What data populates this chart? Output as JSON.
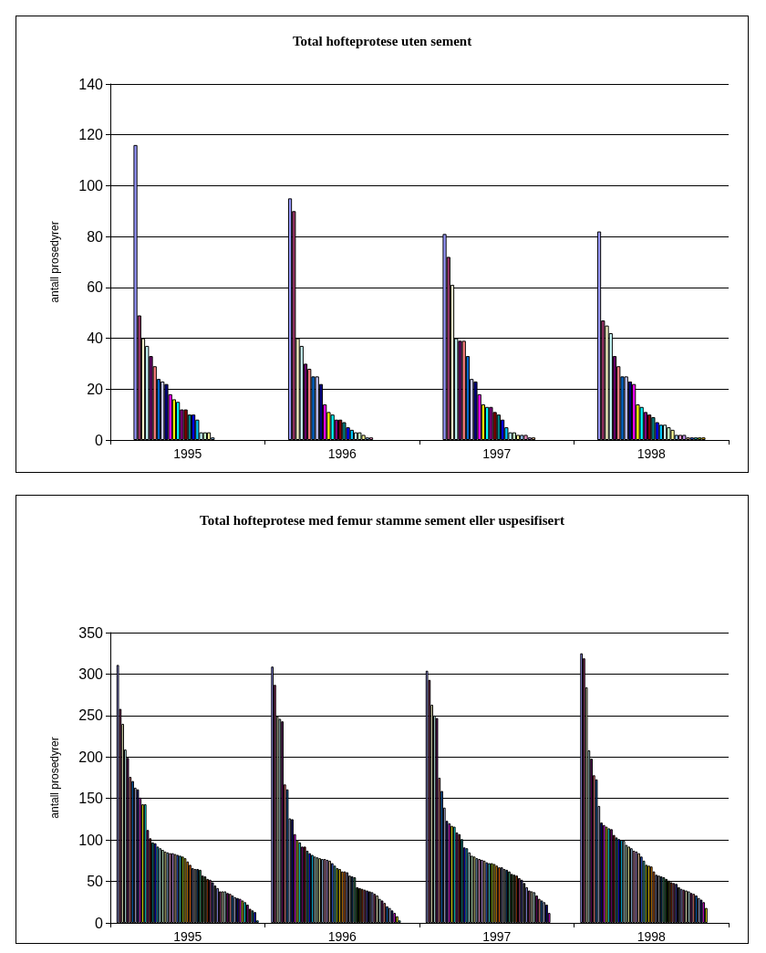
{
  "chart_data": [
    {
      "type": "bar",
      "title": "Total hofteprotese uten sement",
      "ylabel": "antall prosedyrer",
      "categories": [
        "1995",
        "1996",
        "1997",
        "1998"
      ],
      "ylim": [
        0,
        140
      ],
      "yticks": [
        0,
        20,
        40,
        60,
        80,
        100,
        120,
        140
      ],
      "grid": "y",
      "series": [
        {
          "color": "#9999ff",
          "values": [
            116,
            95,
            81,
            82
          ]
        },
        {
          "color": "#993366",
          "values": [
            49,
            90,
            72,
            47
          ]
        },
        {
          "color": "#ffffcc",
          "values": [
            40,
            40,
            61,
            45
          ]
        },
        {
          "color": "#ccffff",
          "values": [
            37,
            37,
            40,
            42
          ]
        },
        {
          "color": "#660066",
          "values": [
            33,
            30,
            39,
            33
          ]
        },
        {
          "color": "#ff8080",
          "values": [
            29,
            28,
            39,
            29
          ]
        },
        {
          "color": "#0066cc",
          "values": [
            24,
            25,
            33,
            25
          ]
        },
        {
          "color": "#ccccff",
          "values": [
            23,
            25,
            24,
            25
          ]
        },
        {
          "color": "#000080",
          "values": [
            22,
            22,
            23,
            23
          ]
        },
        {
          "color": "#ff00ff",
          "values": [
            18,
            14,
            18,
            22
          ]
        },
        {
          "color": "#ffff00",
          "values": [
            16,
            11,
            14,
            14
          ]
        },
        {
          "color": "#00ffff",
          "values": [
            15,
            10,
            13,
            13
          ]
        },
        {
          "color": "#800080",
          "values": [
            12,
            8,
            13,
            11
          ]
        },
        {
          "color": "#800000",
          "values": [
            12,
            8,
            11,
            10
          ]
        },
        {
          "color": "#008080",
          "values": [
            10,
            7,
            10,
            9
          ]
        },
        {
          "color": "#0000ff",
          "values": [
            10,
            5,
            8,
            7
          ]
        },
        {
          "color": "#00ccff",
          "values": [
            8,
            4,
            5,
            6
          ]
        },
        {
          "color": "#ccffff",
          "values": [
            3,
            3,
            3,
            6
          ]
        },
        {
          "color": "#ccffcc",
          "values": [
            3,
            3,
            3,
            5
          ]
        },
        {
          "color": "#ffff99",
          "values": [
            3,
            2,
            2,
            4
          ]
        },
        {
          "color": "#99ccff",
          "values": [
            1,
            1,
            2,
            2
          ]
        },
        {
          "color": "#ff99cc",
          "values": [
            null,
            1,
            2,
            2
          ]
        },
        {
          "color": "#cc99ff",
          "values": [
            null,
            null,
            1,
            2
          ]
        },
        {
          "color": "#ffcc99",
          "values": [
            null,
            null,
            1,
            1
          ]
        },
        {
          "color": "#3366ff",
          "values": [
            null,
            null,
            null,
            1
          ]
        },
        {
          "color": "#33cccc",
          "values": [
            null,
            null,
            null,
            1
          ]
        },
        {
          "color": "#99cc00",
          "values": [
            null,
            null,
            null,
            1
          ]
        },
        {
          "color": "#ffcc00",
          "values": [
            null,
            null,
            null,
            1
          ]
        }
      ]
    },
    {
      "type": "bar",
      "title": "Total hofteprotese med femur stamme sement eller uspesifisert",
      "ylabel": "antall prosedyrer",
      "categories": [
        "1995",
        "1996",
        "1997",
        "1998"
      ],
      "ylim": [
        0,
        350
      ],
      "yticks": [
        0,
        50,
        100,
        150,
        200,
        250,
        300,
        350
      ],
      "grid": "y",
      "series": [
        {
          "color": "#9999ff",
          "values": [
            311,
            309,
            304,
            325
          ]
        },
        {
          "color": "#993366",
          "values": [
            258,
            287,
            293,
            319
          ]
        },
        {
          "color": "#ffffcc",
          "values": [
            240,
            249,
            263,
            284
          ]
        },
        {
          "color": "#ccffff",
          "values": [
            209,
            246,
            250,
            208
          ]
        },
        {
          "color": "#660066",
          "values": [
            199,
            243,
            247,
            198
          ]
        },
        {
          "color": "#ff8080",
          "values": [
            176,
            167,
            175,
            178
          ]
        },
        {
          "color": "#0066cc",
          "values": [
            171,
            161,
            159,
            173
          ]
        },
        {
          "color": "#ccccff",
          "values": [
            163,
            126,
            139,
            141
          ]
        },
        {
          "color": "#000080",
          "values": [
            161,
            125,
            123,
            121
          ]
        },
        {
          "color": "#ff00ff",
          "values": [
            151,
            107,
            120,
            118
          ]
        },
        {
          "color": "#ffff00",
          "values": [
            143,
            100,
            117,
            116
          ]
        },
        {
          "color": "#00ffff",
          "values": [
            143,
            97,
            116,
            114
          ]
        },
        {
          "color": "#800080",
          "values": [
            112,
            92,
            109,
            113
          ]
        },
        {
          "color": "#800000",
          "values": [
            102,
            92,
            107,
            106
          ]
        },
        {
          "color": "#008080",
          "values": [
            97,
            87,
            101,
            103
          ]
        },
        {
          "color": "#0000ff",
          "values": [
            96,
            84,
            91,
            101
          ]
        },
        {
          "color": "#00ccff",
          "values": [
            92,
            82,
            90,
            100
          ]
        },
        {
          "color": "#ccffff",
          "values": [
            90,
            80,
            85,
            99
          ]
        },
        {
          "color": "#ccffcc",
          "values": [
            88,
            79,
            81,
            94
          ]
        },
        {
          "color": "#ffff99",
          "values": [
            86,
            78,
            80,
            92
          ]
        },
        {
          "color": "#99ccff",
          "values": [
            85,
            77,
            78,
            90
          ]
        },
        {
          "color": "#ff99cc",
          "values": [
            84,
            77,
            77,
            87
          ]
        },
        {
          "color": "#cc99ff",
          "values": [
            84,
            76,
            76,
            86
          ]
        },
        {
          "color": "#ffcc99",
          "values": [
            83,
            75,
            75,
            84
          ]
        },
        {
          "color": "#3366ff",
          "values": [
            82,
            72,
            73,
            80
          ]
        },
        {
          "color": "#33cccc",
          "values": [
            81,
            69,
            72,
            75
          ]
        },
        {
          "color": "#99cc00",
          "values": [
            80,
            66,
            72,
            70
          ]
        },
        {
          "color": "#ffcc00",
          "values": [
            78,
            65,
            71,
            69
          ]
        },
        {
          "color": "#ff9900",
          "values": [
            74,
            62,
            69,
            68
          ]
        },
        {
          "color": "#ff6600",
          "values": [
            70,
            62,
            67,
            62
          ]
        },
        {
          "color": "#666699",
          "values": [
            66,
            61,
            67,
            58
          ]
        },
        {
          "color": "#969696",
          "values": [
            65,
            57,
            65,
            57
          ]
        },
        {
          "color": "#003366",
          "values": [
            65,
            56,
            64,
            56
          ]
        },
        {
          "color": "#339966",
          "values": [
            64,
            55,
            62,
            55
          ]
        },
        {
          "color": "#003300",
          "values": [
            57,
            43,
            59,
            53
          ]
        },
        {
          "color": "#333300",
          "values": [
            56,
            42,
            58,
            51
          ]
        },
        {
          "color": "#993300",
          "values": [
            53,
            41,
            57,
            49
          ]
        },
        {
          "color": "#993366",
          "values": [
            52,
            40,
            54,
            48
          ]
        },
        {
          "color": "#333399",
          "values": [
            49,
            39,
            52,
            47
          ]
        },
        {
          "color": "#333333",
          "values": [
            45,
            38,
            48,
            43
          ]
        },
        {
          "color": "#9999ff",
          "values": [
            42,
            37,
            43,
            41
          ]
        },
        {
          "color": "#993366",
          "values": [
            38,
            35,
            39,
            40
          ]
        },
        {
          "color": "#ffffcc",
          "values": [
            38,
            33,
            38,
            39
          ]
        },
        {
          "color": "#ccffff",
          "values": [
            38,
            29,
            37,
            38
          ]
        },
        {
          "color": "#660066",
          "values": [
            36,
            27,
            33,
            36
          ]
        },
        {
          "color": "#ff8080",
          "values": [
            35,
            24,
            29,
            35
          ]
        },
        {
          "color": "#0066cc",
          "values": [
            33,
            20,
            27,
            33
          ]
        },
        {
          "color": "#ccccff",
          "values": [
            31,
            18,
            25,
            30
          ]
        },
        {
          "color": "#000080",
          "values": [
            30,
            15,
            22,
            28
          ]
        },
        {
          "color": "#ff00ff",
          "values": [
            29,
            12,
            12,
            25
          ]
        },
        {
          "color": "#ffff00",
          "values": [
            27,
            8,
            null,
            18
          ]
        },
        {
          "color": "#00ffff",
          "values": [
            25,
            3,
            null,
            null
          ]
        },
        {
          "color": "#800080",
          "values": [
            22,
            null,
            null,
            null
          ]
        },
        {
          "color": "#800000",
          "values": [
            17,
            null,
            null,
            null
          ]
        },
        {
          "color": "#008080",
          "values": [
            15,
            null,
            null,
            null
          ]
        },
        {
          "color": "#0000ff",
          "values": [
            13,
            null,
            null,
            null
          ]
        },
        {
          "color": "#00ccff",
          "values": [
            3,
            null,
            null,
            null
          ]
        }
      ]
    }
  ]
}
